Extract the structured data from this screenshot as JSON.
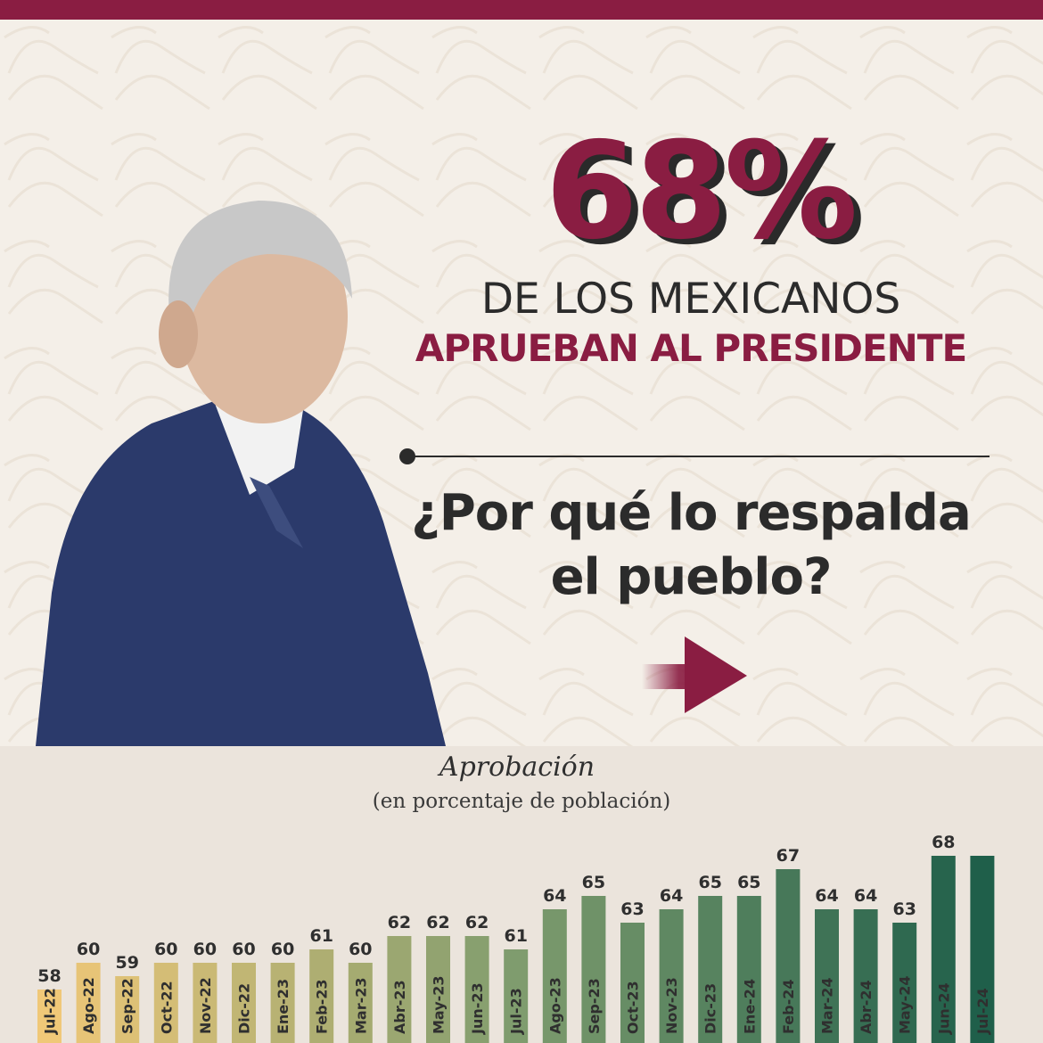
{
  "headline": {
    "big_number": "68%",
    "line1": "DE LOS MEXICANOS",
    "line2": "APRUEBAN AL PRESIDENTE",
    "question": "¿Por qué lo respalda el pueblo?"
  },
  "colors": {
    "brand": "#8a1d42",
    "text_dark": "#2b2b2b",
    "background": "#f4efe8",
    "chart_panel": "#ebe4dc",
    "bar_start": "#f0c878",
    "bar_mid": "#7f9c6e",
    "bar_end": "#1f5f4a"
  },
  "icons": [
    "arrow-right-icon",
    "portrait-photo"
  ],
  "chart_data": {
    "type": "bar",
    "title": "Aprobación",
    "subtitle": "(en porcentaje de población)",
    "categories": [
      "Jul-22",
      "Ago-22",
      "Sep-22",
      "Oct-22",
      "Nov-22",
      "Dic-22",
      "Ene-23",
      "Feb-23",
      "Mar-23",
      "Abr-23",
      "May-23",
      "Jun-23",
      "Jul-23",
      "Ago-23",
      "Sep-23",
      "Oct-23",
      "Nov-23",
      "Dic-23",
      "Ene-24",
      "Feb-24",
      "Mar-24",
      "Abr-24",
      "May-24",
      "Jun-24",
      "Jul-24"
    ],
    "values": [
      58,
      60,
      59,
      60,
      60,
      60,
      60,
      61,
      60,
      62,
      62,
      62,
      61,
      64,
      65,
      63,
      64,
      65,
      65,
      67,
      64,
      64,
      63,
      68,
      68
    ],
    "value_labels": [
      "58",
      "60",
      "59",
      "60",
      "60",
      "60",
      "60",
      "61",
      "60",
      "62",
      "62",
      "62",
      "61",
      "64",
      "65",
      "63",
      "64",
      "65",
      "65",
      "67",
      "64",
      "64",
      "63",
      "68",
      ""
    ],
    "xlabel": "",
    "ylabel": "",
    "grid": false,
    "legend": "none"
  }
}
